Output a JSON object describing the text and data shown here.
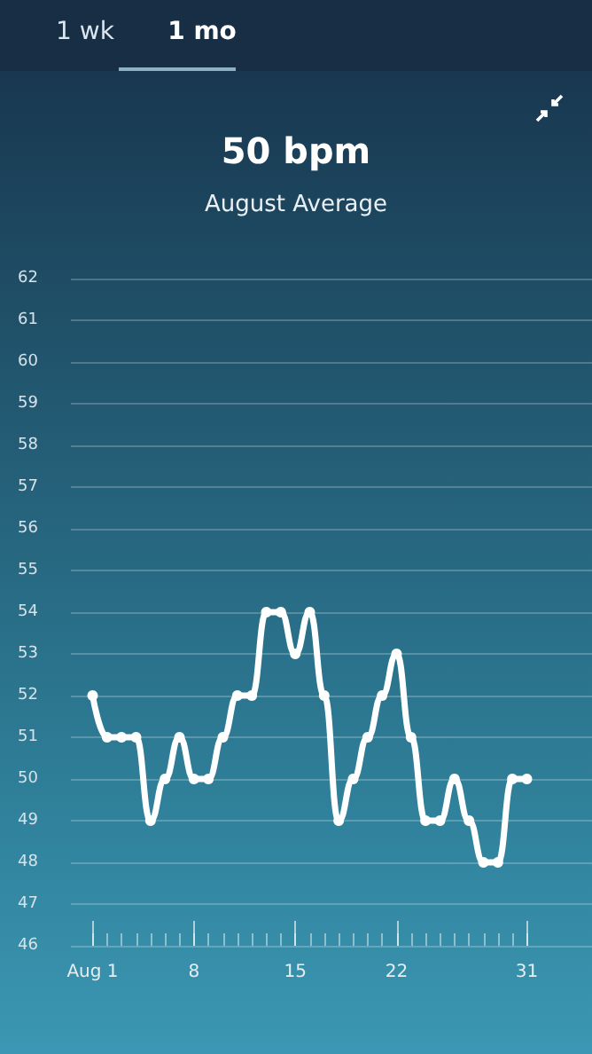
{
  "chart_data": {
    "type": "line",
    "title": "50 bpm",
    "subtitle": "August Average",
    "annotations": [
      "1 wk",
      "1 mo"
    ],
    "x": [
      1,
      2,
      3,
      4,
      5,
      6,
      7,
      8,
      9,
      10,
      11,
      12,
      13,
      14,
      15,
      16,
      17,
      18,
      19,
      20,
      21,
      22,
      23,
      24,
      25,
      26,
      27,
      28,
      29,
      30,
      31
    ],
    "series": [
      {
        "color": "#ffffff",
        "values": [
          52,
          51,
          51,
          51,
          49,
          50,
          51,
          50,
          50,
          51,
          52,
          52,
          54,
          54,
          53,
          54,
          52,
          49,
          50,
          51,
          52,
          53,
          51,
          49,
          49,
          50,
          49,
          48,
          48,
          50,
          50
        ]
      }
    ],
    "xlim": [
      -0.5,
      35.5
    ],
    "xticks": [
      {
        "value": 1,
        "label": "Aug 1"
      },
      8,
      15,
      22,
      31
    ],
    "ylim": [
      46,
      62
    ],
    "yticks": [
      46,
      47,
      48,
      49,
      50,
      51,
      52,
      53,
      54,
      55,
      56,
      57,
      58,
      59,
      60,
      61,
      62
    ],
    "grid": "y",
    "marker": "circle",
    "line_style": "solid"
  }
}
